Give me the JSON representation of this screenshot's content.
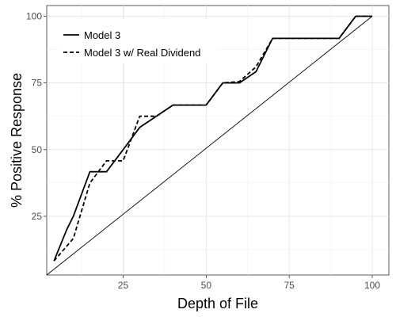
{
  "chart_data": {
    "type": "line",
    "xlabel": "Depth of File",
    "ylabel": "% Positive Response",
    "xlim": [
      2,
      105
    ],
    "ylim": [
      3,
      104
    ],
    "x_ticks": [
      25,
      50,
      75,
      100
    ],
    "y_ticks": [
      25,
      50,
      75,
      100
    ],
    "x_tick_labels": [
      "25",
      "50",
      "75",
      "100"
    ],
    "y_tick_labels": [
      "25",
      "50",
      "75",
      "100"
    ],
    "grid": true,
    "legend_position": "top-left",
    "series": [
      {
        "name": "Model 3",
        "style": "solid",
        "color": "#000000",
        "x": [
          4.2,
          8,
          10,
          15,
          20,
          25,
          30,
          40,
          45,
          50,
          55,
          60,
          65,
          70,
          75,
          80,
          85,
          90,
          95,
          100
        ],
        "y": [
          8.3,
          20,
          25,
          41.7,
          41.7,
          50,
          58.3,
          66.7,
          66.7,
          66.7,
          75,
          75,
          79.2,
          91.7,
          91.7,
          91.7,
          91.7,
          91.7,
          100,
          100
        ]
      },
      {
        "name": "Model 3 w/ Real Dividend",
        "style": "dashed",
        "color": "#000000",
        "x": [
          4.2,
          10,
          15,
          20,
          25,
          30,
          35,
          40,
          45,
          50,
          55,
          60,
          65,
          70,
          75,
          80,
          85,
          90,
          95,
          100
        ],
        "y": [
          8.3,
          16.7,
          37.5,
          45.8,
          45.8,
          62.5,
          62.5,
          66.7,
          66.7,
          66.7,
          75,
          75.5,
          81,
          91.7,
          91.7,
          91.7,
          91.7,
          91.7,
          100,
          100
        ]
      },
      {
        "name": "",
        "style": "thin",
        "color": "#000000",
        "x": [
          2,
          100
        ],
        "y": [
          3,
          100
        ]
      }
    ]
  }
}
